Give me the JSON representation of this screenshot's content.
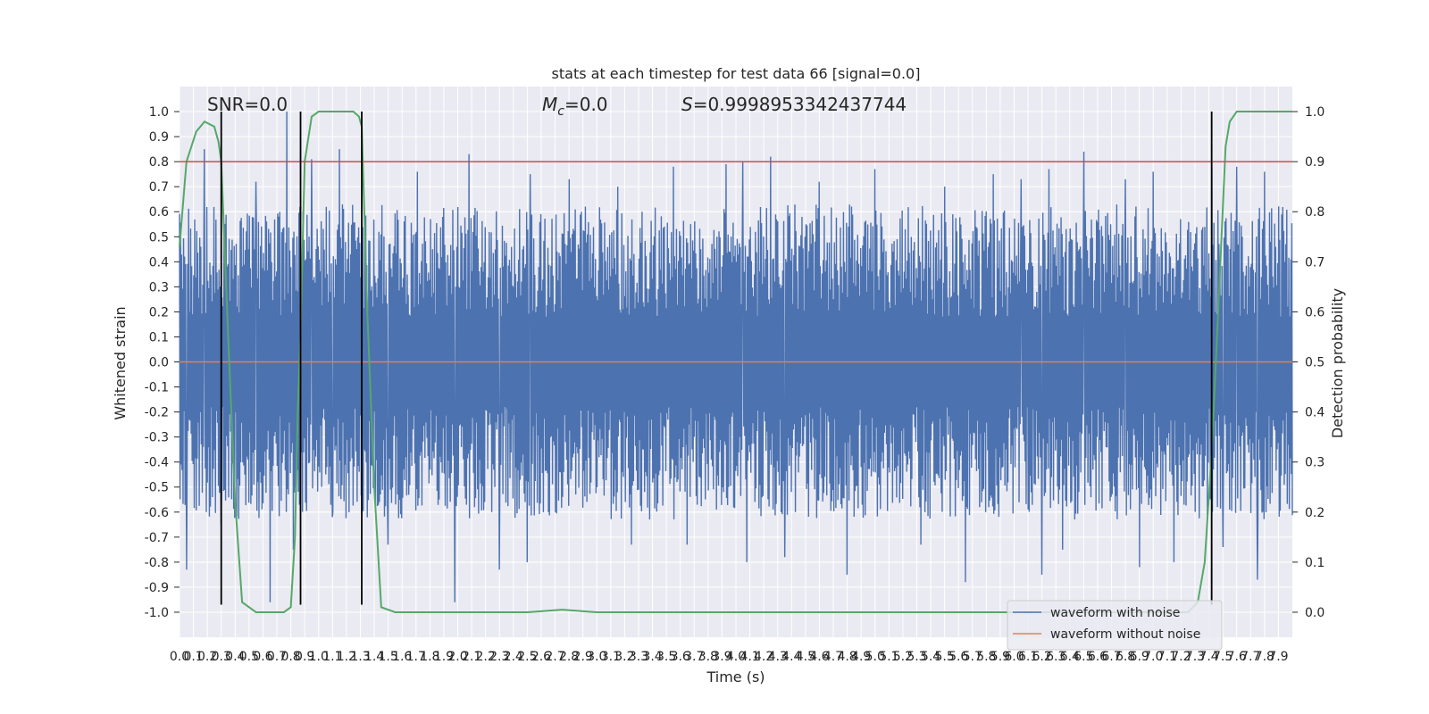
{
  "chart_data": {
    "type": "line",
    "title": "stats at each timestep for test data 66 [signal=0.0]",
    "xlabel": "Time (s)",
    "ylabel": "Whitened strain",
    "y2label": "Detection probability",
    "xlim": [
      0.0,
      8.0
    ],
    "ylim": [
      -1.1,
      1.1
    ],
    "y2lim": [
      -0.05,
      1.05
    ],
    "grid": true,
    "legend_position": "lower-right",
    "background": "#eaeaf2",
    "x_tick_step": 0.1,
    "x_tick_labels": [
      "0.0",
      "0.1",
      "0.2",
      "0.3",
      "0.4",
      "0.5",
      "0.6",
      "0.7",
      "0.8",
      "0.9",
      "1.0",
      "1.1",
      "1.2",
      "1.3",
      "1.4",
      "1.5",
      "1.6",
      "1.7",
      "1.8",
      "1.9",
      "2.0",
      "2.1",
      "2.2",
      "2.3",
      "2.4",
      "2.5",
      "2.6",
      "2.7",
      "2.8",
      "2.9",
      "3.0",
      "3.1",
      "3.2",
      "3.3",
      "3.4",
      "3.5",
      "3.6",
      "3.7",
      "3.8",
      "3.9",
      "4.0",
      "4.1",
      "4.2",
      "4.3",
      "4.4",
      "4.5",
      "4.6",
      "4.7",
      "4.8",
      "4.9",
      "5.0",
      "5.1",
      "5.2",
      "5.3",
      "5.4",
      "5.5",
      "5.6",
      "5.7",
      "5.8",
      "5.9",
      "6.0",
      "6.1",
      "6.2",
      "6.3",
      "6.4",
      "6.5",
      "6.6",
      "6.7",
      "6.8",
      "6.9",
      "7.0",
      "7.1",
      "7.2",
      "7.3",
      "7.4",
      "7.5",
      "7.6",
      "7.7",
      "7.8",
      "7.9"
    ],
    "y_ticks": [
      -1.0,
      -0.9,
      -0.8,
      -0.7,
      -0.6,
      -0.5,
      -0.4,
      -0.3,
      -0.2,
      -0.1,
      0.0,
      0.1,
      0.2,
      0.3,
      0.4,
      0.5,
      0.6,
      0.7,
      0.8,
      0.9,
      1.0
    ],
    "y_tick_labels": [
      "-1.0",
      "-0.9",
      "-0.8",
      "-0.7",
      "-0.6",
      "-0.5",
      "-0.4",
      "-0.3",
      "-0.2",
      "-0.1",
      "0.0",
      "0.1",
      "0.2",
      "0.3",
      "0.4",
      "0.5",
      "0.6",
      "0.7",
      "0.8",
      "0.9",
      "1.0"
    ],
    "y2_ticks": [
      0.0,
      0.1,
      0.2,
      0.3,
      0.4,
      0.5,
      0.6,
      0.7,
      0.8,
      0.9,
      1.0
    ],
    "y2_tick_labels": [
      "0.0",
      "0.1",
      "0.2",
      "0.3",
      "0.4",
      "0.5",
      "0.6",
      "0.7",
      "0.8",
      "0.9",
      "1.0"
    ],
    "annotations": {
      "snr": "SNR=0.0",
      "mc": "M",
      "mc_sub": "c",
      "mc_value": "=0.0",
      "s": "S",
      "s_value": "=0.9998953342437744"
    },
    "threshold": {
      "axis": "y2",
      "value": 0.9,
      "color": "#c44e52"
    },
    "event_markers": {
      "x": [
        0.3,
        0.87,
        1.31,
        7.42
      ],
      "y_range": [
        -0.97,
        1.0
      ],
      "color": "#000000"
    },
    "series": [
      {
        "name": "waveform with noise",
        "axis": "y",
        "color": "#4c72b0",
        "noise_envelope": {
          "core_amplitude": 0.45,
          "peak_x": [
            0.18,
            0.3,
            0.55,
            0.77,
            0.95,
            1.15,
            1.71,
            2.08,
            2.3,
            2.52,
            2.8,
            3.15,
            3.55,
            3.93,
            4.05,
            4.25,
            4.35,
            4.6,
            5.0,
            5.5,
            5.85,
            6.05,
            6.25,
            6.5,
            6.8,
            7.0,
            7.42,
            7.6,
            7.8
          ],
          "peak_y": [
            0.85,
            0.82,
            0.72,
            1.0,
            0.81,
            0.85,
            0.76,
            0.83,
            0.62,
            0.75,
            0.73,
            0.7,
            0.78,
            0.79,
            0.8,
            0.82,
            0.75,
            0.72,
            0.77,
            0.7,
            0.75,
            0.73,
            0.77,
            0.84,
            0.73,
            0.76,
            0.78,
            0.78,
            0.76
          ],
          "trough_x": [
            0.05,
            0.3,
            0.65,
            0.82,
            1.1,
            1.5,
            1.98,
            2.3,
            2.5,
            3.25,
            3.65,
            4.08,
            4.35,
            4.8,
            5.33,
            5.65,
            6.2,
            6.35,
            6.9,
            7.15,
            7.5,
            7.75
          ],
          "trough_y": [
            -0.83,
            -0.65,
            -0.96,
            -0.75,
            -0.62,
            -0.73,
            -0.96,
            -0.83,
            -0.8,
            -0.73,
            -0.73,
            -0.8,
            -0.78,
            -0.85,
            -0.73,
            -0.88,
            -0.85,
            -0.75,
            -0.82,
            -0.8,
            -0.74,
            -0.87
          ]
        }
      },
      {
        "name": "waveform without noise",
        "axis": "y",
        "color": "#dd8452",
        "x": [
          0.0,
          8.0
        ],
        "y": [
          0.0,
          0.0
        ]
      },
      {
        "name": "",
        "axis": "y2",
        "color": "#55a868",
        "x": [
          0.0,
          0.05,
          0.12,
          0.18,
          0.25,
          0.28,
          0.3,
          0.35,
          0.4,
          0.45,
          0.55,
          0.65,
          0.75,
          0.8,
          0.83,
          0.85,
          0.87,
          0.9,
          0.95,
          1.0,
          1.1,
          1.2,
          1.25,
          1.29,
          1.31,
          1.35,
          1.4,
          1.45,
          1.55,
          1.7,
          2.0,
          2.5,
          2.6,
          2.75,
          2.9,
          3.0,
          4.0,
          5.0,
          6.0,
          7.0,
          7.25,
          7.32,
          7.37,
          7.42,
          7.47,
          7.52,
          7.55,
          7.6,
          7.8,
          8.0
        ],
        "y": [
          0.73,
          0.9,
          0.96,
          0.98,
          0.97,
          0.94,
          0.9,
          0.55,
          0.22,
          0.02,
          0.0,
          0.0,
          0.0,
          0.01,
          0.15,
          0.4,
          0.56,
          0.9,
          0.99,
          1.0,
          1.0,
          1.0,
          1.0,
          0.99,
          0.97,
          0.6,
          0.25,
          0.01,
          0.0,
          0.0,
          0.0,
          0.0,
          0.002,
          0.005,
          0.002,
          0.0,
          0.0,
          0.0,
          0.0,
          0.0,
          0.0,
          0.02,
          0.1,
          0.32,
          0.62,
          0.93,
          0.98,
          1.0,
          1.0,
          1.0
        ]
      }
    ]
  }
}
